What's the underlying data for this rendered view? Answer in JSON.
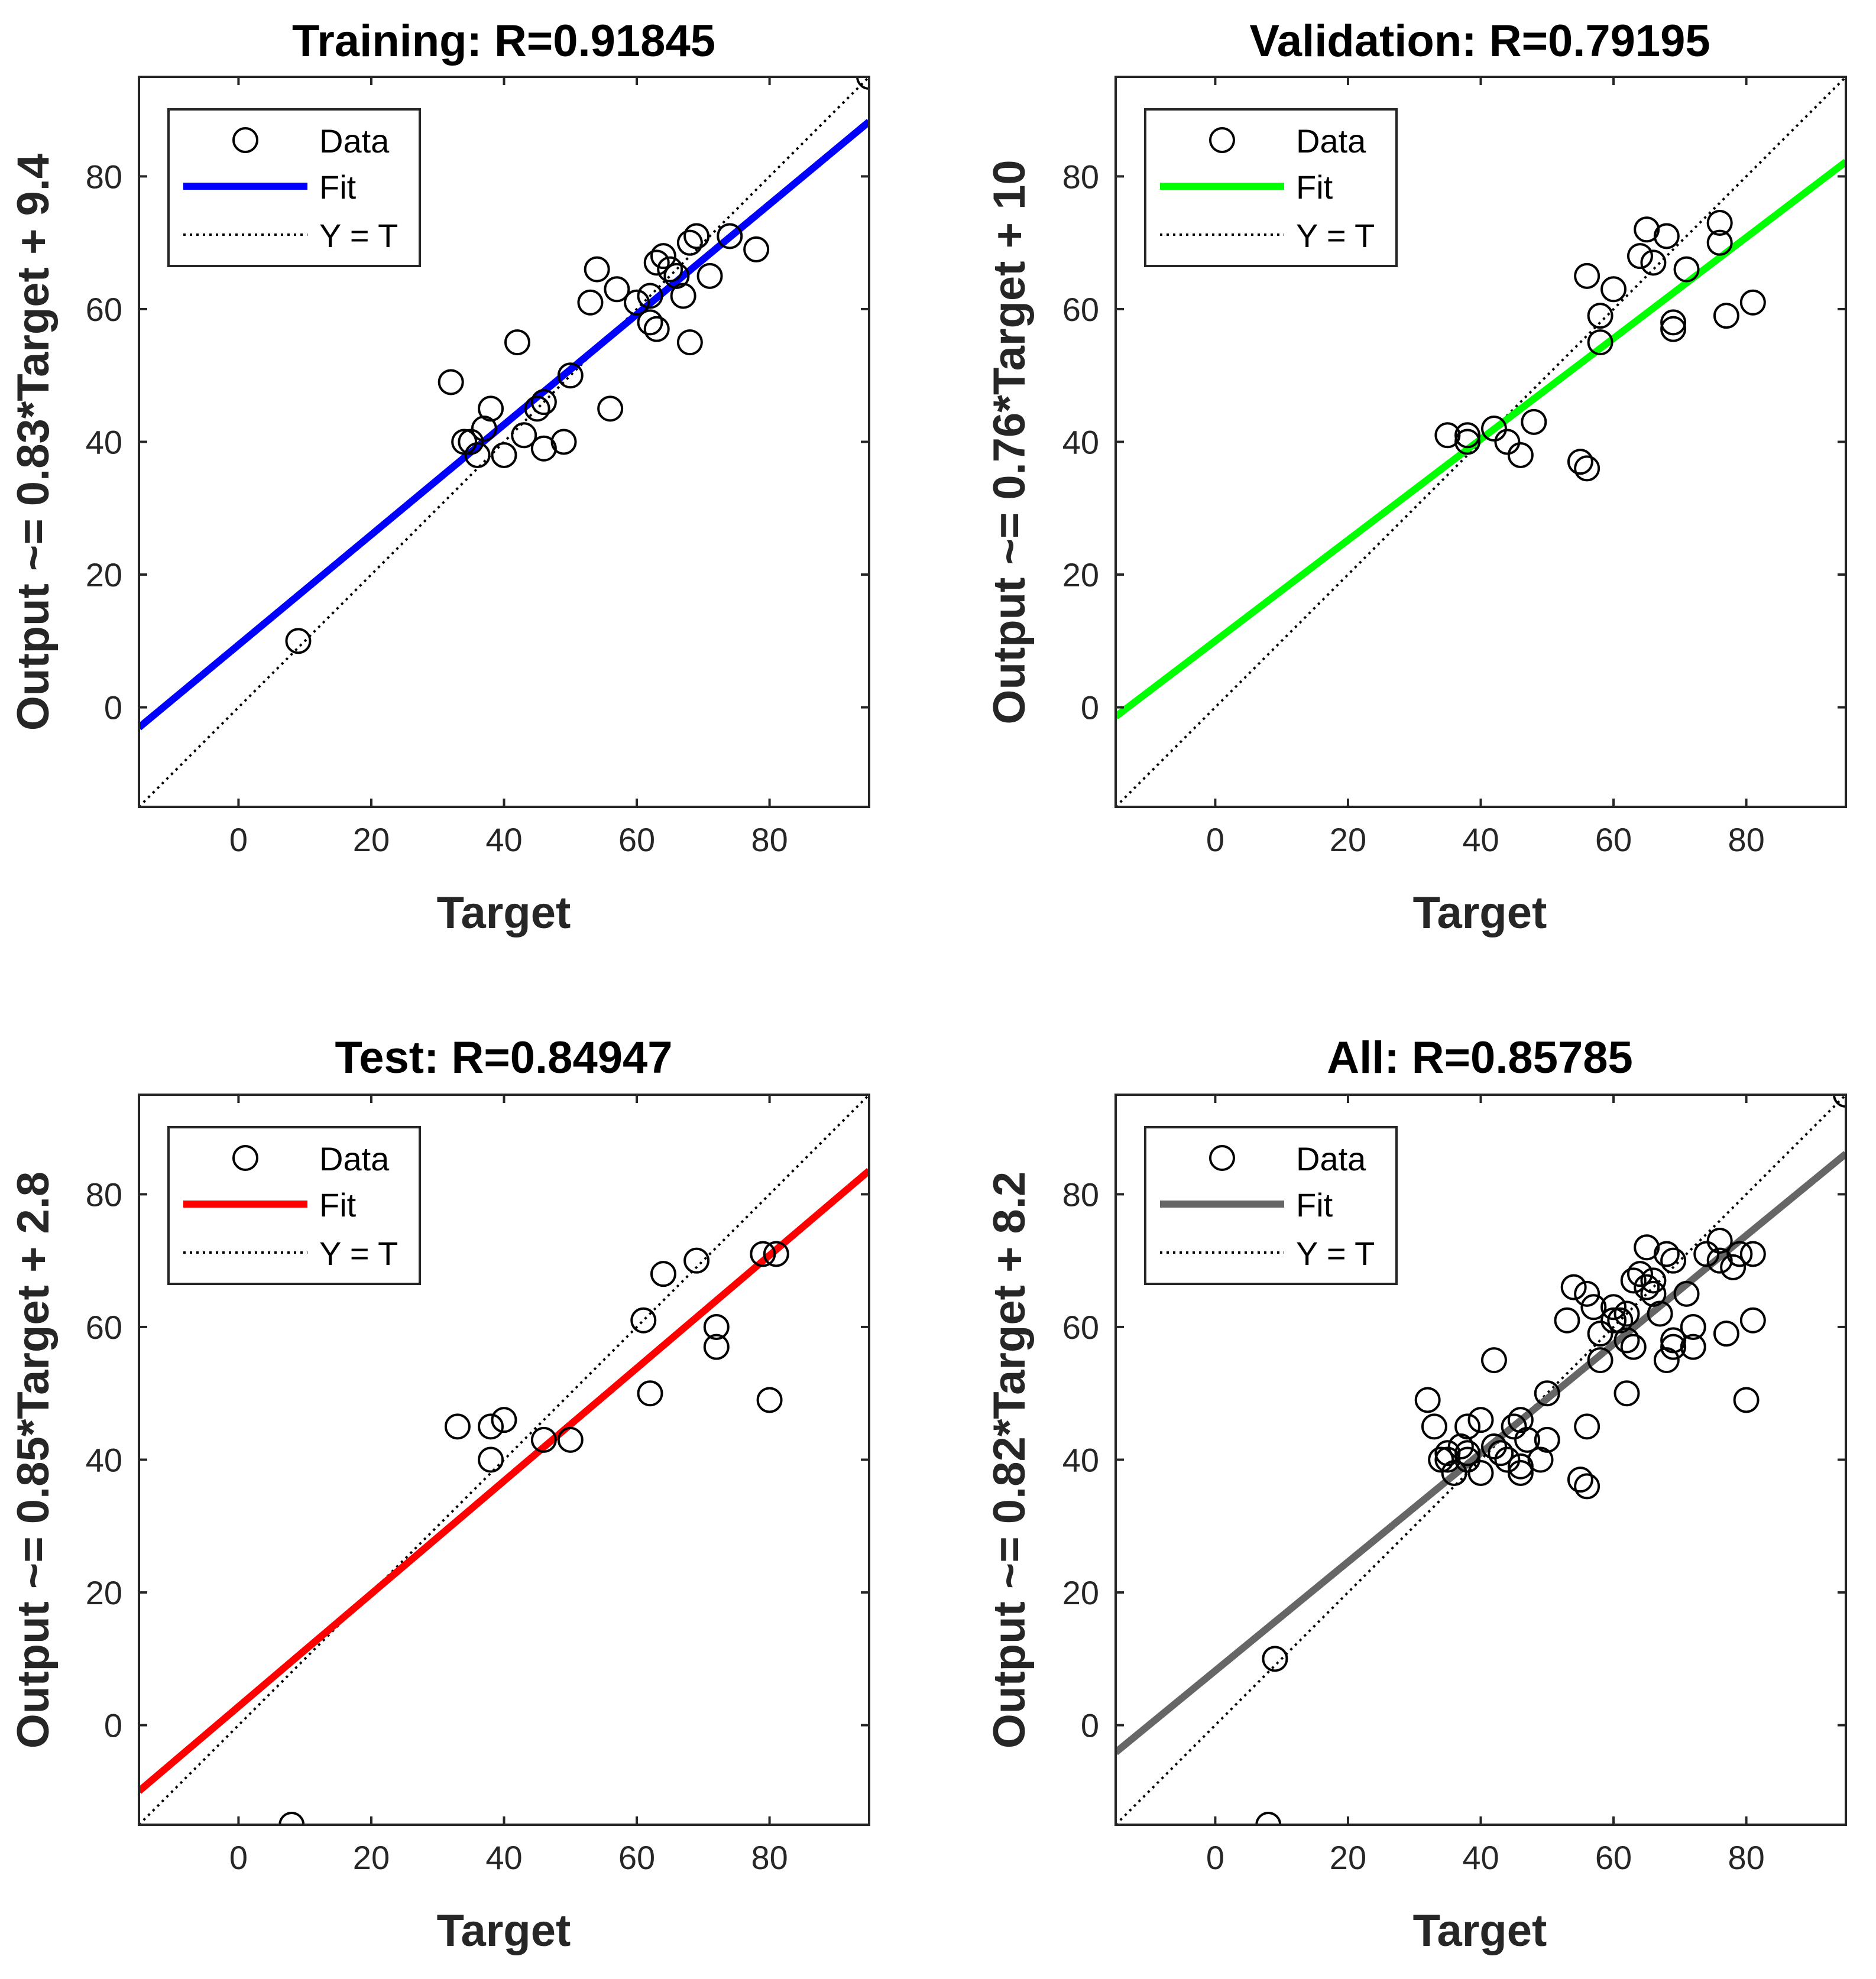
{
  "chart_data": [
    {
      "type": "scatter",
      "title": "Training: R=0.91845",
      "xlabel": "Target",
      "ylabel": "Output ~= 0.83*Target + 9.4",
      "xlim": [
        -15,
        95
      ],
      "ylim": [
        -15,
        95
      ],
      "xticks": [
        0,
        20,
        40,
        60,
        80
      ],
      "yticks": [
        0,
        20,
        40,
        60,
        80
      ],
      "fit": {
        "slope": 0.83,
        "intercept": 9.4,
        "color": "#0000ff"
      },
      "legend": [
        "Data",
        "Fit",
        "Y = T"
      ],
      "points": [
        [
          9,
          10
        ],
        [
          32,
          49
        ],
        [
          34,
          40
        ],
        [
          35,
          40
        ],
        [
          36,
          38
        ],
        [
          37,
          42
        ],
        [
          38,
          45
        ],
        [
          40,
          38
        ],
        [
          42,
          55
        ],
        [
          43,
          41
        ],
        [
          45,
          45
        ],
        [
          46,
          39
        ],
        [
          46,
          46
        ],
        [
          49,
          40
        ],
        [
          50,
          50
        ],
        [
          53,
          61
        ],
        [
          54,
          66
        ],
        [
          56,
          45
        ],
        [
          57,
          63
        ],
        [
          60,
          61
        ],
        [
          62,
          62
        ],
        [
          62,
          58
        ],
        [
          63,
          67
        ],
        [
          63,
          57
        ],
        [
          64,
          68
        ],
        [
          65,
          66
        ],
        [
          66,
          65
        ],
        [
          67,
          62
        ],
        [
          68,
          55
        ],
        [
          68,
          70
        ],
        [
          69,
          71
        ],
        [
          71,
          65
        ],
        [
          74,
          71
        ],
        [
          78,
          69
        ],
        [
          95,
          95
        ]
      ]
    },
    {
      "type": "scatter",
      "title": "Validation: R=0.79195",
      "xlabel": "Target",
      "ylabel": "Output ~= 0.76*Target + 10",
      "xlim": [
        -15,
        95
      ],
      "ylim": [
        -15,
        95
      ],
      "xticks": [
        0,
        20,
        40,
        60,
        80
      ],
      "yticks": [
        0,
        20,
        40,
        60,
        80
      ],
      "fit": {
        "slope": 0.76,
        "intercept": 10,
        "color": "#00ff00"
      },
      "legend": [
        "Data",
        "Fit",
        "Y = T"
      ],
      "points": [
        [
          35,
          41
        ],
        [
          38,
          41
        ],
        [
          38,
          40
        ],
        [
          42,
          42
        ],
        [
          44,
          40
        ],
        [
          46,
          38
        ],
        [
          48,
          43
        ],
        [
          55,
          37
        ],
        [
          56,
          36
        ],
        [
          56,
          65
        ],
        [
          58,
          59
        ],
        [
          58,
          55
        ],
        [
          60,
          63
        ],
        [
          64,
          68
        ],
        [
          65,
          72
        ],
        [
          66,
          67
        ],
        [
          68,
          71
        ],
        [
          69,
          57
        ],
        [
          69,
          58
        ],
        [
          71,
          66
        ],
        [
          76,
          73
        ],
        [
          76,
          70
        ],
        [
          77,
          59
        ],
        [
          81,
          61
        ]
      ]
    },
    {
      "type": "scatter",
      "title": "Test: R=0.84947",
      "xlabel": "Target",
      "ylabel": "Output ~= 0.85*Target + 2.8",
      "xlim": [
        -15,
        95
      ],
      "ylim": [
        -15,
        95
      ],
      "xticks": [
        0,
        20,
        40,
        60,
        80
      ],
      "yticks": [
        0,
        20,
        40,
        60,
        80
      ],
      "fit": {
        "slope": 0.85,
        "intercept": 2.8,
        "color": "#ff0000"
      },
      "legend": [
        "Data",
        "Fit",
        "Y = T"
      ],
      "points": [
        [
          8,
          -15
        ],
        [
          33,
          45
        ],
        [
          38,
          40
        ],
        [
          38,
          45
        ],
        [
          40,
          46
        ],
        [
          46,
          43
        ],
        [
          50,
          43
        ],
        [
          61,
          61
        ],
        [
          62,
          50
        ],
        [
          64,
          68
        ],
        [
          69,
          70
        ],
        [
          72,
          60
        ],
        [
          72,
          57
        ],
        [
          79,
          71
        ],
        [
          80,
          49
        ],
        [
          81,
          71
        ]
      ]
    },
    {
      "type": "scatter",
      "title": "All: R=0.85785",
      "xlabel": "Target",
      "ylabel": "Output ~= 0.82*Target + 8.2",
      "xlim": [
        -15,
        95
      ],
      "ylim": [
        -15,
        95
      ],
      "xticks": [
        0,
        20,
        40,
        60,
        80
      ],
      "yticks": [
        0,
        20,
        40,
        60,
        80
      ],
      "fit": {
        "slope": 0.82,
        "intercept": 8.2,
        "color": "#666666"
      },
      "legend": [
        "Data",
        "Fit",
        "Y = T"
      ],
      "points": [
        [
          8,
          -15
        ],
        [
          9,
          10
        ],
        [
          32,
          49
        ],
        [
          33,
          45
        ],
        [
          34,
          40
        ],
        [
          35,
          40
        ],
        [
          35,
          41
        ],
        [
          36,
          38
        ],
        [
          37,
          42
        ],
        [
          38,
          41
        ],
        [
          38,
          45
        ],
        [
          38,
          40
        ],
        [
          40,
          38
        ],
        [
          40,
          46
        ],
        [
          42,
          55
        ],
        [
          42,
          42
        ],
        [
          43,
          41
        ],
        [
          44,
          40
        ],
        [
          45,
          45
        ],
        [
          46,
          38
        ],
        [
          46,
          39
        ],
        [
          46,
          46
        ],
        [
          47,
          43
        ],
        [
          49,
          40
        ],
        [
          50,
          50
        ],
        [
          50,
          43
        ],
        [
          53,
          61
        ],
        [
          54,
          66
        ],
        [
          55,
          37
        ],
        [
          56,
          36
        ],
        [
          56,
          45
        ],
        [
          56,
          65
        ],
        [
          57,
          63
        ],
        [
          58,
          59
        ],
        [
          58,
          55
        ],
        [
          60,
          61
        ],
        [
          60,
          63
        ],
        [
          61,
          61
        ],
        [
          62,
          62
        ],
        [
          62,
          50
        ],
        [
          62,
          58
        ],
        [
          63,
          67
        ],
        [
          63,
          57
        ],
        [
          64,
          68
        ],
        [
          65,
          72
        ],
        [
          65,
          66
        ],
        [
          66,
          65
        ],
        [
          66,
          67
        ],
        [
          67,
          62
        ],
        [
          68,
          55
        ],
        [
          68,
          71
        ],
        [
          69,
          70
        ],
        [
          69,
          57
        ],
        [
          69,
          58
        ],
        [
          71,
          65
        ],
        [
          72,
          60
        ],
        [
          72,
          57
        ],
        [
          74,
          71
        ],
        [
          76,
          73
        ],
        [
          76,
          70
        ],
        [
          77,
          59
        ],
        [
          78,
          69
        ],
        [
          79,
          71
        ],
        [
          80,
          49
        ],
        [
          81,
          61
        ],
        [
          81,
          71
        ],
        [
          95,
          95
        ]
      ]
    }
  ]
}
